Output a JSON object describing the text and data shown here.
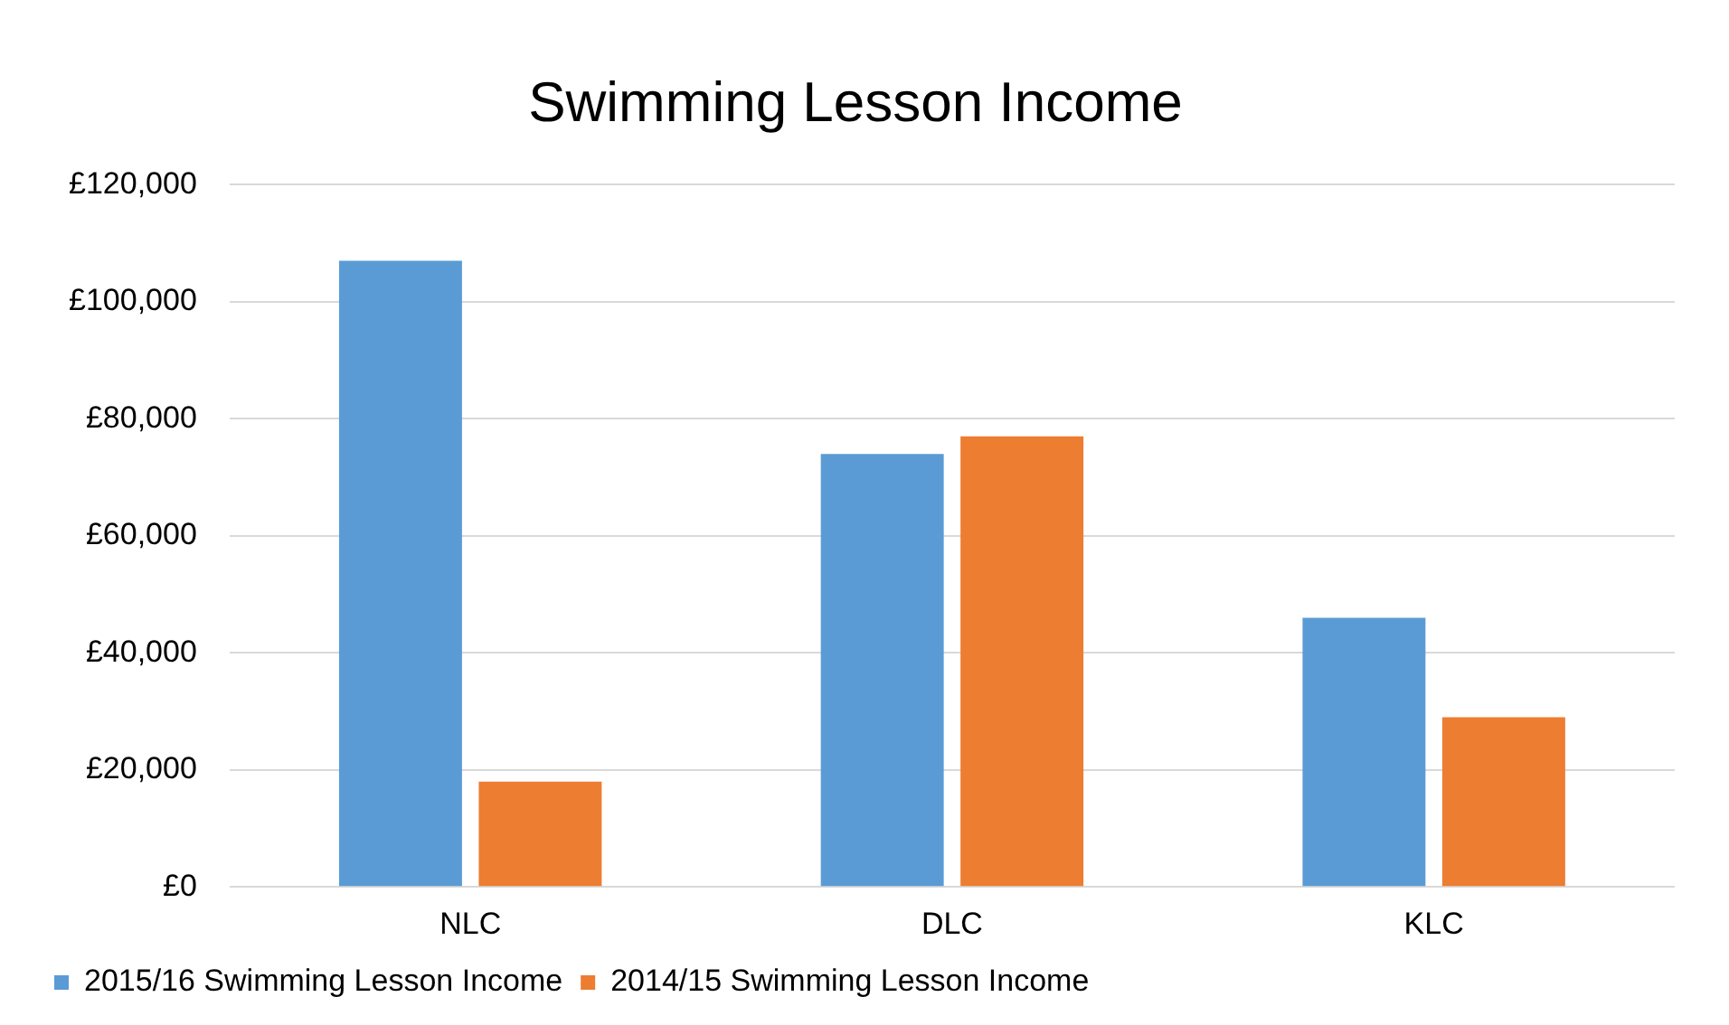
{
  "chart_data": {
    "type": "bar",
    "title": "Swimming Lesson Income",
    "categories": [
      "NLC",
      "DLC",
      "KLC"
    ],
    "series": [
      {
        "name": "2015/16 Swimming Lesson Income",
        "color": "#5b9bd5",
        "values": [
          107000,
          74000,
          46000
        ]
      },
      {
        "name": "2014/15 Swimming Lesson Income",
        "color": "#ed7d31",
        "values": [
          18000,
          77000,
          29000
        ]
      }
    ],
    "ylim": [
      0,
      120000
    ],
    "yticks": [
      {
        "value": 0,
        "label": "£0"
      },
      {
        "value": 20000,
        "label": "£20,000"
      },
      {
        "value": 40000,
        "label": "£40,000"
      },
      {
        "value": 60000,
        "label": "£60,000"
      },
      {
        "value": 80000,
        "label": "£80,000"
      },
      {
        "value": 100000,
        "label": "£100,000"
      },
      {
        "value": 120000,
        "label": "£120,000"
      }
    ],
    "grid": "y",
    "legend": "bottom left"
  }
}
